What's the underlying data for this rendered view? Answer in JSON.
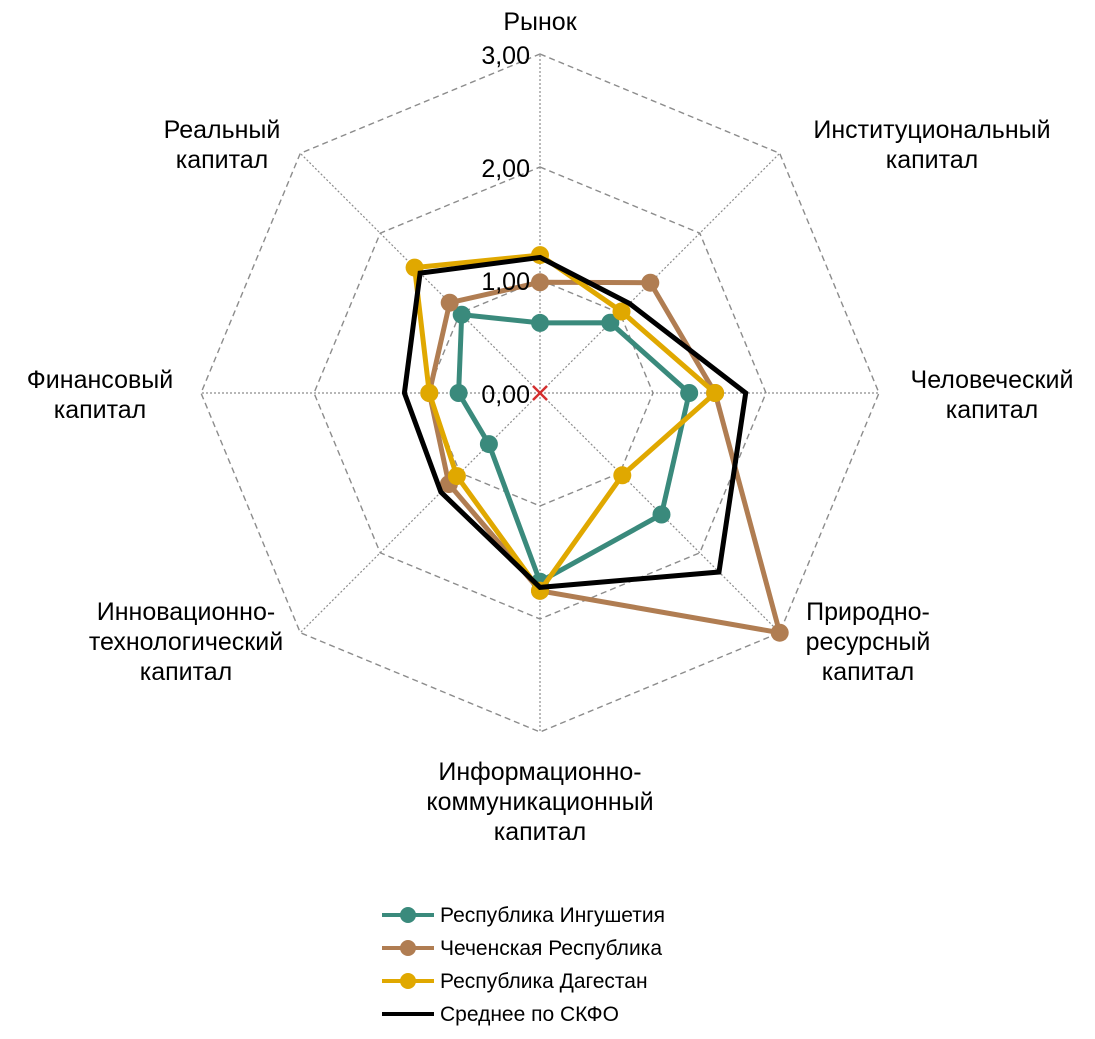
{
  "chart_data": {
    "type": "radar",
    "categories": [
      [
        "Рынок"
      ],
      [
        "Институциональный",
        "капитал"
      ],
      [
        "Человеческий",
        "капитал"
      ],
      [
        "Природно-",
        "ресурсный",
        "капитал"
      ],
      [
        "Информационно-",
        "коммуникационный",
        "капитал"
      ],
      [
        "Инновационно-",
        "технологический",
        "капитал"
      ],
      [
        "Финансовый",
        "капитал"
      ],
      [
        "Реальный",
        "капитал"
      ]
    ],
    "ticks": [
      "0,00",
      "1,00",
      "2,00",
      "3,00"
    ],
    "rmax": 3,
    "series": [
      {
        "name": "Республика Ингушетия",
        "color": "#3a8a7c",
        "marker": "circle",
        "values": [
          0.62,
          0.88,
          1.32,
          1.52,
          1.67,
          0.64,
          0.72,
          0.98
        ]
      },
      {
        "name": "Чеченская Республика",
        "color": "#b07d52",
        "marker": "circle",
        "values": [
          0.98,
          1.38,
          1.55,
          3.0,
          1.75,
          1.14,
          0.98,
          1.13
        ]
      },
      {
        "name": "Республика Дагестан",
        "color": "#e0a800",
        "marker": "circle",
        "values": [
          1.22,
          1.02,
          1.55,
          1.03,
          1.75,
          1.04,
          0.98,
          1.57
        ]
      },
      {
        "name": "Среднее по СКФО",
        "color": "#000000",
        "marker": "none",
        "values": [
          1.2,
          1.12,
          1.82,
          2.24,
          1.72,
          1.24,
          1.2,
          1.5
        ]
      }
    ],
    "grid": "dashed",
    "legend": "bottom"
  }
}
